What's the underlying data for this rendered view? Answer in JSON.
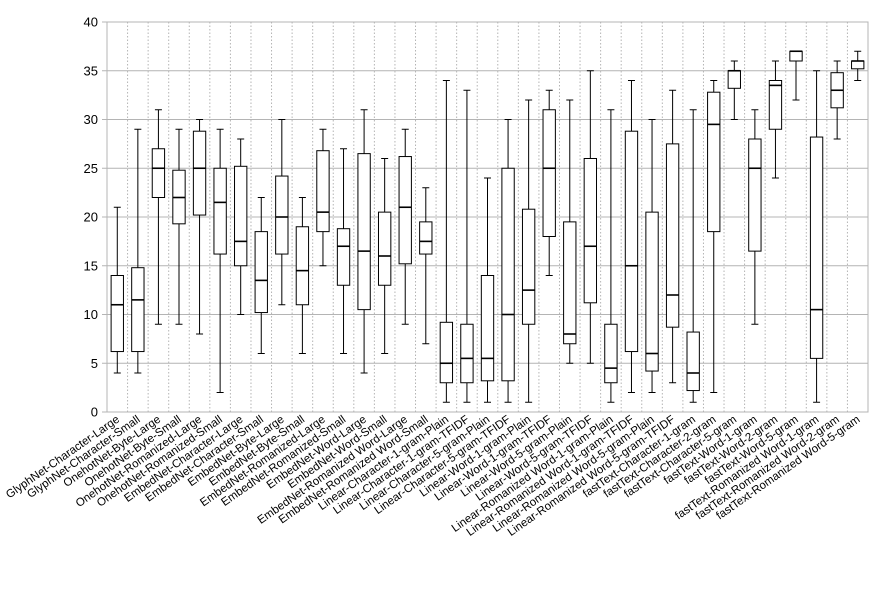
{
  "chart_data": {
    "type": "boxplot",
    "title": "",
    "xlabel": "",
    "ylabel": "",
    "ylim": [
      0,
      40
    ],
    "yticks": [
      0,
      5,
      10,
      15,
      20,
      25,
      30,
      35,
      40
    ],
    "grid": {
      "horizontal": true,
      "vertical": "dotted"
    },
    "colors": {
      "box_stroke": "#000000",
      "box_fill": "#ffffff",
      "grid": "#b4b4b4"
    },
    "categories": [
      "GlyphNet-Character-Large",
      "GlyphNet-Character-Small",
      "OnehotNet-Byte-Large",
      "OnehotNet-Byte-Small",
      "OnehotNet-Romanized-Large",
      "OnehotNet-Romanized-Small",
      "EmbedNet-Character-Large",
      "EmbedNet-Character-Small",
      "EmbedNet-Byte-Large",
      "EmbedNet-Byte-Small",
      "EmbedNet-Romanized-Large",
      "EmbedNet-Romanized-Small",
      "EmbedNet-Word-Large",
      "EmbedNet-Word-Small",
      "EmbedNet-Romanized Word-Large",
      "EmbedNet-Romanized Word-Small",
      "Linear-Character-1-gram-Plain",
      "Linear-Character-1-gram-TFIDF",
      "Linear-Character-5-gram-Plain",
      "Linear-Character-5-gram-TFIDF",
      "Linear-Word-1-gram-Plain",
      "Linear-Word-1-gram-TFIDF",
      "Linear-Word-5-gram-Plain",
      "Linear-Word-5-gram-TFIDF",
      "Linear-Romanized Word-1-gram-Plain",
      "Linear-Romanized Word-1-gram-TFIDF",
      "Linear-Romanized Word-5-gram-Plain",
      "Linear-Romanized Word-5-gram-TFIDF",
      "fastText-Character-1-gram",
      "fastText-Character-2-gram",
      "fastText-Character-5-gram",
      "fastText-Word-1-gram",
      "fastText-Word-2-gram",
      "fastText-Word-5-gram",
      "fastText-Romanized Word-1-gram",
      "fastText-Romanized Word-2-gram",
      "fastText-Romanized Word-5-gram"
    ],
    "series": [
      {
        "min": [
          4,
          4,
          9,
          9,
          8,
          2,
          10,
          6,
          11,
          6,
          15,
          6,
          4,
          6,
          9,
          7,
          1,
          1,
          1,
          1,
          1,
          14,
          5,
          5,
          1,
          2,
          2,
          3,
          1,
          2,
          30,
          9,
          24,
          32,
          1,
          28,
          34
        ],
        "q1": [
          6.2,
          6.2,
          22,
          19.3,
          20.2,
          16.2,
          15,
          10.2,
          16.2,
          11,
          18.5,
          13,
          10.5,
          13,
          15.2,
          16.2,
          3,
          3,
          3.2,
          3.2,
          9,
          18,
          7,
          11.2,
          3,
          6.2,
          4.2,
          8.7,
          2.2,
          18.5,
          33.2,
          16.5,
          29,
          36,
          5.5,
          31.2,
          35.2
        ],
        "median": [
          11,
          11.5,
          25,
          22,
          25,
          21.5,
          17.5,
          13.5,
          20,
          14.5,
          20.5,
          17,
          16.5,
          16,
          21,
          17.5,
          5,
          5.5,
          5.5,
          10,
          12.5,
          25,
          8,
          17,
          4.5,
          15,
          6,
          12,
          4,
          29.5,
          35,
          25,
          33.5,
          37,
          10.5,
          33,
          36
        ],
        "q3": [
          14,
          14.8,
          27,
          24.8,
          28.8,
          25,
          25.2,
          18.5,
          24.2,
          19,
          26.8,
          18.8,
          26.5,
          20.5,
          26.2,
          19.5,
          9.2,
          9,
          14,
          25,
          20.8,
          31,
          19.5,
          26,
          9,
          28.8,
          20.5,
          27.5,
          8.2,
          32.8,
          35,
          28,
          34,
          37,
          28.2,
          34.8,
          36
        ],
        "max": [
          21,
          29,
          31,
          29,
          30,
          29,
          28,
          22,
          30,
          22,
          29,
          27,
          31,
          26,
          29,
          23,
          34,
          33,
          24,
          30,
          32,
          33,
          32,
          35,
          31,
          34,
          30,
          33,
          31,
          34,
          36,
          31,
          36,
          37,
          35,
          36,
          37
        ]
      }
    ]
  }
}
